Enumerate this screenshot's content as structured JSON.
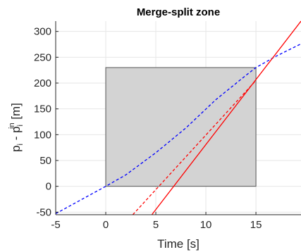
{
  "chart_data": {
    "type": "line",
    "title": "Merge-split zone",
    "xlabel": "Time [s]",
    "ylabel": {
      "base": "p",
      "sub1": "i",
      "mid": " - p",
      "sub2": "i",
      "sup": "in",
      "tail": " [m]"
    },
    "xlim": [
      -5,
      19.5
    ],
    "ylim": [
      -55,
      320
    ],
    "xticks": [
      -5,
      0,
      5,
      10,
      15
    ],
    "yticks": [
      -50,
      0,
      50,
      100,
      150,
      200,
      250,
      300
    ],
    "grid": true,
    "zone": {
      "x": [
        0,
        15
      ],
      "y": [
        0,
        230
      ],
      "fill": "#d3d3d3",
      "edge": "#555555"
    },
    "series": [
      {
        "style": "dashed",
        "color": "#0000ff",
        "x": [
          -5,
          0,
          2,
          5,
          8,
          11,
          14,
          15,
          17,
          19.5
        ],
        "y": [
          -53,
          0,
          22,
          65,
          113,
          168,
          215,
          230,
          252,
          276
        ]
      },
      {
        "style": "solid",
        "color": "#ff0000",
        "x": [
          4.6,
          19.5
        ],
        "y": [
          -55,
          320
        ]
      },
      {
        "style": "dashed",
        "color": "#ff0000",
        "x": [
          2.7,
          15
        ],
        "y": [
          -55,
          205
        ]
      }
    ]
  }
}
